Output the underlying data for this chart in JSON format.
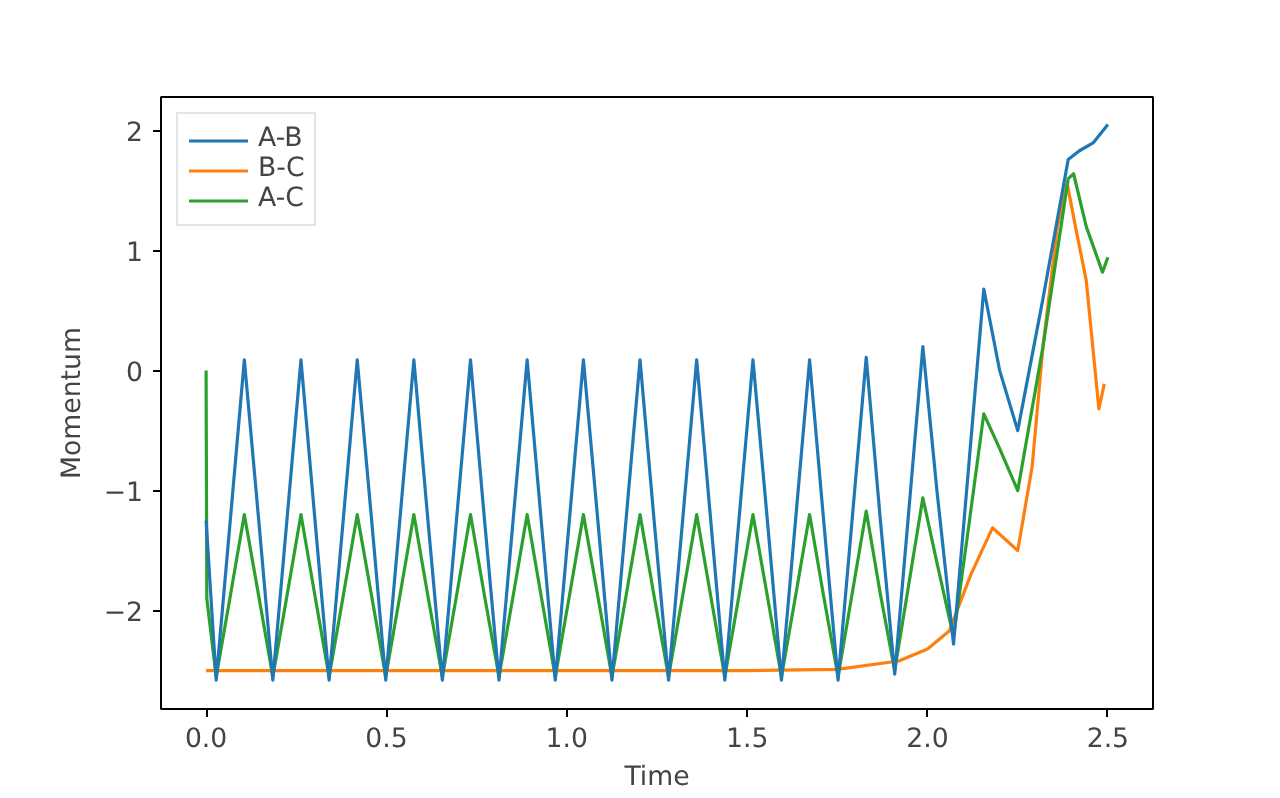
{
  "chart_data": {
    "type": "line",
    "xlabel": "Time",
    "ylabel": "Momentum",
    "xlim": [
      -0.125,
      2.625
    ],
    "ylim": [
      -2.82,
      2.28
    ],
    "xticks": [
      {
        "value": 0,
        "label": "0.0"
      },
      0.5,
      {
        "value": 1,
        "label": "1.0"
      },
      1.5,
      {
        "value": 2,
        "label": "2.0"
      },
      2.5
    ],
    "yticks": [
      {
        "value": -2,
        "label": "−2"
      },
      {
        "value": -1,
        "label": "−1"
      },
      0,
      1,
      2
    ],
    "grid": false,
    "legend": "top left",
    "line_style": "solid",
    "series": [
      {
        "name": "A-B",
        "color": "#1f77b4",
        "x": [
          0,
          0.028,
          0.067,
          0.106,
          0.146,
          0.185,
          0.224,
          0.263,
          0.302,
          0.341,
          0.38,
          0.419,
          0.459,
          0.498,
          0.537,
          0.576,
          0.615,
          0.655,
          0.694,
          0.733,
          0.772,
          0.812,
          0.851,
          0.89,
          0.929,
          0.968,
          1.007,
          1.046,
          1.086,
          1.125,
          1.164,
          1.203,
          1.242,
          1.282,
          1.321,
          1.36,
          1.399,
          1.438,
          1.477,
          1.516,
          1.556,
          1.595,
          1.634,
          1.673,
          1.712,
          1.752,
          1.791,
          1.83,
          1.869,
          1.909,
          1.948,
          1.987,
          2.026,
          2.072,
          2.114,
          2.156,
          2.2,
          2.25,
          2.32,
          2.39,
          2.42,
          2.46,
          2.5
        ],
        "values": [
          -1.25,
          -2.58,
          -1.25,
          0.09,
          -1.25,
          -2.58,
          -1.25,
          0.09,
          -1.25,
          -2.58,
          -1.25,
          0.09,
          -1.25,
          -2.58,
          -1.25,
          0.09,
          -1.25,
          -2.58,
          -1.25,
          0.09,
          -1.25,
          -2.58,
          -1.25,
          0.09,
          -1.25,
          -2.58,
          -1.25,
          0.09,
          -1.25,
          -2.58,
          -1.25,
          0.09,
          -1.25,
          -2.58,
          -1.25,
          0.09,
          -1.25,
          -2.58,
          -1.25,
          0.09,
          -1.25,
          -2.58,
          -1.25,
          0.09,
          -1.25,
          -2.58,
          -1.24,
          0.11,
          -1.24,
          -2.53,
          -1.17,
          0.2,
          -1.0,
          -2.28,
          -0.8,
          0.68,
          0.0,
          -0.5,
          0.6,
          1.76,
          1.83,
          1.9,
          2.05
        ]
      },
      {
        "name": "B-C",
        "color": "#ff7f0e",
        "x": [
          0,
          1.5,
          1.75,
          1.92,
          2.0,
          2.06,
          2.12,
          2.18,
          2.25,
          2.29,
          2.32,
          2.36,
          2.387,
          2.41,
          2.44,
          2.475,
          2.49
        ],
        "values": [
          -2.5,
          -2.5,
          -2.49,
          -2.42,
          -2.32,
          -2.17,
          -1.7,
          -1.31,
          -1.5,
          -0.8,
          0.2,
          1.2,
          1.56,
          1.2,
          0.75,
          -0.32,
          -0.11
        ]
      },
      {
        "name": "A-C",
        "color": "#2ca02c",
        "x": [
          0,
          0.002,
          0.028,
          0.067,
          0.106,
          0.146,
          0.185,
          0.224,
          0.263,
          0.302,
          0.341,
          0.38,
          0.419,
          0.459,
          0.498,
          0.537,
          0.576,
          0.615,
          0.655,
          0.694,
          0.733,
          0.772,
          0.812,
          0.851,
          0.89,
          0.929,
          0.968,
          1.007,
          1.046,
          1.086,
          1.125,
          1.164,
          1.203,
          1.242,
          1.282,
          1.321,
          1.36,
          1.399,
          1.438,
          1.477,
          1.516,
          1.556,
          1.595,
          1.634,
          1.673,
          1.712,
          1.752,
          1.791,
          1.83,
          1.869,
          1.909,
          1.948,
          1.987,
          2.026,
          2.072,
          2.114,
          2.156,
          2.2,
          2.25,
          2.32,
          2.39,
          2.405,
          2.44,
          2.485,
          2.5
        ],
        "values": [
          0,
          -1.9,
          -2.55,
          -1.88,
          -1.2,
          -1.88,
          -2.55,
          -1.88,
          -1.2,
          -1.88,
          -2.55,
          -1.88,
          -1.2,
          -1.88,
          -2.55,
          -1.88,
          -1.2,
          -1.88,
          -2.55,
          -1.88,
          -1.2,
          -1.88,
          -2.55,
          -1.88,
          -1.2,
          -1.88,
          -2.55,
          -1.88,
          -1.2,
          -1.88,
          -2.55,
          -1.88,
          -1.2,
          -1.88,
          -2.55,
          -1.88,
          -1.2,
          -1.88,
          -2.55,
          -1.88,
          -1.2,
          -1.88,
          -2.55,
          -1.88,
          -1.2,
          -1.88,
          -2.55,
          -1.86,
          -1.17,
          -1.86,
          -2.5,
          -1.78,
          -1.06,
          -1.6,
          -2.22,
          -1.3,
          -0.36,
          -0.65,
          -1.0,
          0.2,
          1.6,
          1.64,
          1.2,
          0.82,
          0.945
        ]
      }
    ]
  }
}
